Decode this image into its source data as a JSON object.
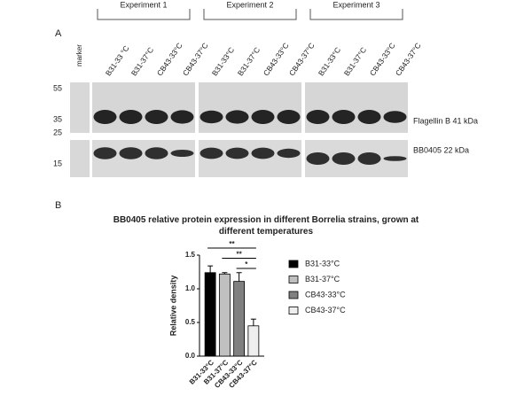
{
  "panel_a": {
    "label": "A",
    "marker_label": "marker",
    "marker_sizes": [
      "55",
      "35",
      "25",
      "15"
    ],
    "experiments": [
      {
        "title": "Experiment 1",
        "lanes": [
          "B31-33 °C",
          "B31-37°C",
          "CB43-33°C",
          "CB43-37°C"
        ]
      },
      {
        "title": "Experiment 2",
        "lanes": [
          "B31-33°C",
          "B31-37°C",
          "CB43-33°C",
          "CB43-37°C"
        ]
      },
      {
        "title": "Experiment 3",
        "lanes": [
          "B31-33°C",
          "B31-37°C",
          "CB43-33°C",
          "CB43-37°C"
        ]
      }
    ],
    "band_labels": [
      "Flagellin B 41 kDa",
      "BB0405 22 kDa"
    ]
  },
  "chart_data": {
    "type": "bar",
    "panel_label": "B",
    "title": "BB0405 relative protein expression in different Borrelia strains, grown at different temperatures",
    "y_label": "Relative density",
    "categories": [
      "B31-33°C",
      "B31-37°C",
      "CB43-33°C",
      "CB43-37°C"
    ],
    "values": [
      1.24,
      1.22,
      1.11,
      0.45
    ],
    "errors": [
      0.1,
      0.02,
      0.13,
      0.1
    ],
    "colors": [
      "#000000",
      "#c0c0c0",
      "#808080",
      "#eeeeee"
    ],
    "ylim": [
      0,
      1.5
    ],
    "yticks": [
      {
        "value": 0,
        "label": "0.0"
      },
      0.5,
      {
        "value": 1,
        "label": "1.0"
      },
      1.5
    ],
    "significance": [
      {
        "label": "**",
        "from": 0,
        "to": 3
      },
      {
        "label": "**",
        "from": 1,
        "to": 3
      },
      {
        "label": "*",
        "from": 2,
        "to": 3
      }
    ],
    "legend": "right"
  }
}
